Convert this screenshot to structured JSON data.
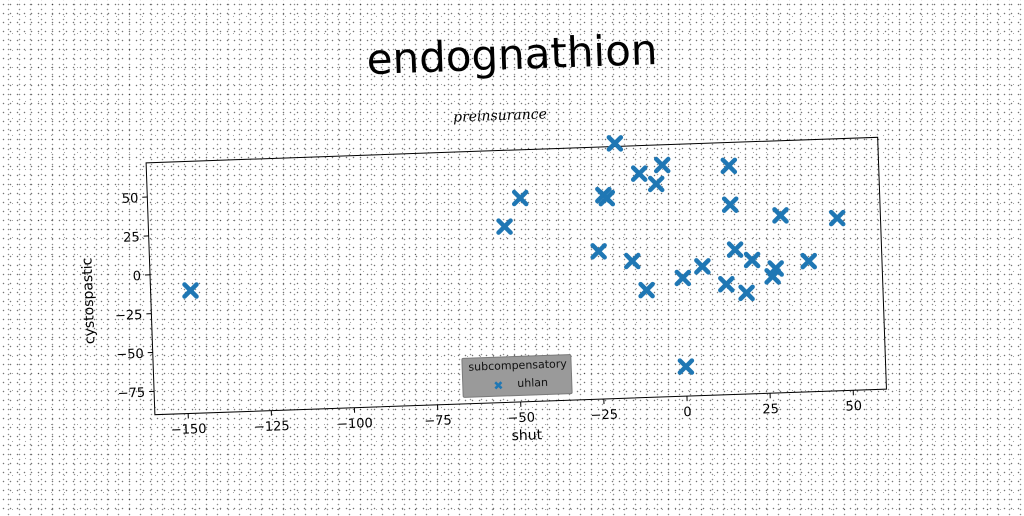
{
  "title": "endognathion",
  "chart_data": {
    "type": "scatter",
    "title": "preinsurance",
    "xlabel": "shut",
    "ylabel": "cystospastic",
    "xlim": [
      -160,
      60
    ],
    "ylim": [
      -90,
      72
    ],
    "xticks": [
      -150,
      -125,
      -100,
      -75,
      -50,
      -25,
      0,
      25,
      50
    ],
    "yticks": [
      -75,
      -50,
      -25,
      0,
      25,
      50
    ],
    "xtick_labels": [
      "−150",
      "−125",
      "−100",
      "−75",
      "−50",
      "−25",
      "0",
      "25",
      "50"
    ],
    "ytick_labels": [
      "−75",
      "−50",
      "−25",
      "0",
      "25",
      "50"
    ],
    "grid": false,
    "legend": {
      "title": "subcompensatory",
      "placement": "lower-center"
    },
    "series": [
      {
        "name": "uhlan",
        "color": "#1f77b4",
        "marker": "X",
        "x": [
          -148,
          -48,
          -53,
          -23,
          -22,
          -19,
          -25,
          -15,
          -11,
          -12,
          -7,
          -5,
          15,
          15,
          16,
          30,
          47,
          38,
          27,
          28,
          21,
          19,
          13,
          6,
          0,
          0
        ],
        "y": [
          -11,
          41,
          23,
          41,
          39,
          74,
          5,
          -2,
          -21,
          54,
          47,
          59,
          57,
          32,
          3,
          24,
          21,
          -6,
          -15,
          -10,
          -4,
          -25,
          -19,
          -7,
          -14,
          -71
        ]
      }
    ]
  }
}
